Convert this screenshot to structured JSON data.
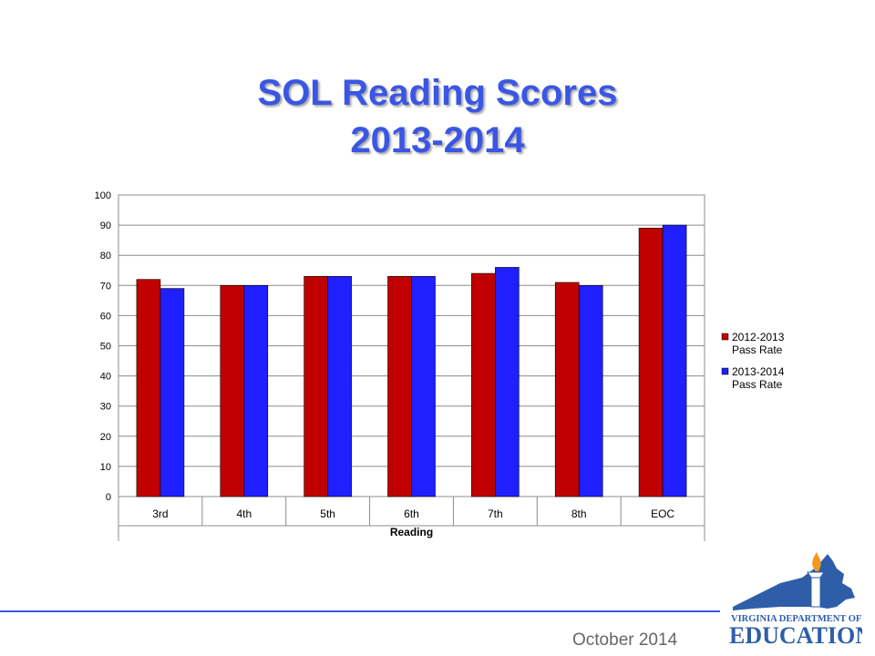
{
  "slide": {
    "title_line1": "SOL Reading Scores",
    "title_line2": "2013-2014",
    "footer": "October 2014",
    "accent_color": "#3a56e4"
  },
  "logo": {
    "icon": "virginia-torch-logo-icon",
    "line1": "VIRGINIA DEPARTMENT OF",
    "line2": "EDUCATION",
    "color": "#2f5ea8",
    "flame_color": "#f39a1e"
  },
  "chart_data": {
    "type": "bar",
    "categories": [
      "3rd",
      "4th",
      "5th",
      "6th",
      "7th",
      "8th",
      "EOC"
    ],
    "category_group_label": "Reading",
    "series": [
      {
        "name": "2012-2013 Pass Rate",
        "legend_lines": [
          "2012-2013",
          "Pass Rate"
        ],
        "color": "#c00000",
        "values": [
          72,
          70,
          73,
          73,
          74,
          71,
          89
        ]
      },
      {
        "name": "2013-2014 Pass Rate",
        "legend_lines": [
          "2013-2014",
          "Pass Rate"
        ],
        "color": "#1f1fff",
        "values": [
          69,
          70,
          73,
          73,
          76,
          70,
          90
        ]
      }
    ],
    "ylim": [
      0,
      100
    ],
    "yticks": [
      0,
      10,
      20,
      30,
      40,
      50,
      60,
      70,
      80,
      90,
      100
    ],
    "grid": true,
    "legend_position": "right"
  }
}
